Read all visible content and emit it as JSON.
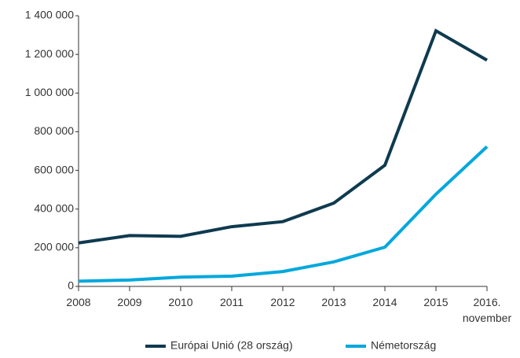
{
  "chart_data": {
    "type": "line",
    "categories": [
      "2008",
      "2009",
      "2010",
      "2011",
      "2012",
      "2013",
      "2014",
      "2015",
      "2016.\nnovember"
    ],
    "series": [
      {
        "name": "Európai Unió (28 ország)",
        "color": "#0f3a4f",
        "values": [
          225000,
          263000,
          259000,
          309000,
          335000,
          431000,
          627000,
          1322000,
          1170000
        ]
      },
      {
        "name": "Németország",
        "color": "#00a8dc",
        "values": [
          27000,
          33000,
          48000,
          53000,
          77000,
          127000,
          203000,
          477000,
          723000
        ]
      }
    ],
    "ylim": [
      0,
      1400000
    ],
    "yticks": [
      0,
      {
        "value": 200000,
        "label": "200 000"
      },
      {
        "value": 400000,
        "label": "400 000"
      },
      {
        "value": 600000,
        "label": "600 000"
      },
      {
        "value": 800000,
        "label": "800 000"
      },
      {
        "value": 1000000,
        "label": "1 000 000"
      },
      {
        "value": 1200000,
        "label": "1 200 000"
      },
      {
        "value": 1400000,
        "label": "1 400 000"
      }
    ],
    "grid": false,
    "legend": "bottom"
  }
}
